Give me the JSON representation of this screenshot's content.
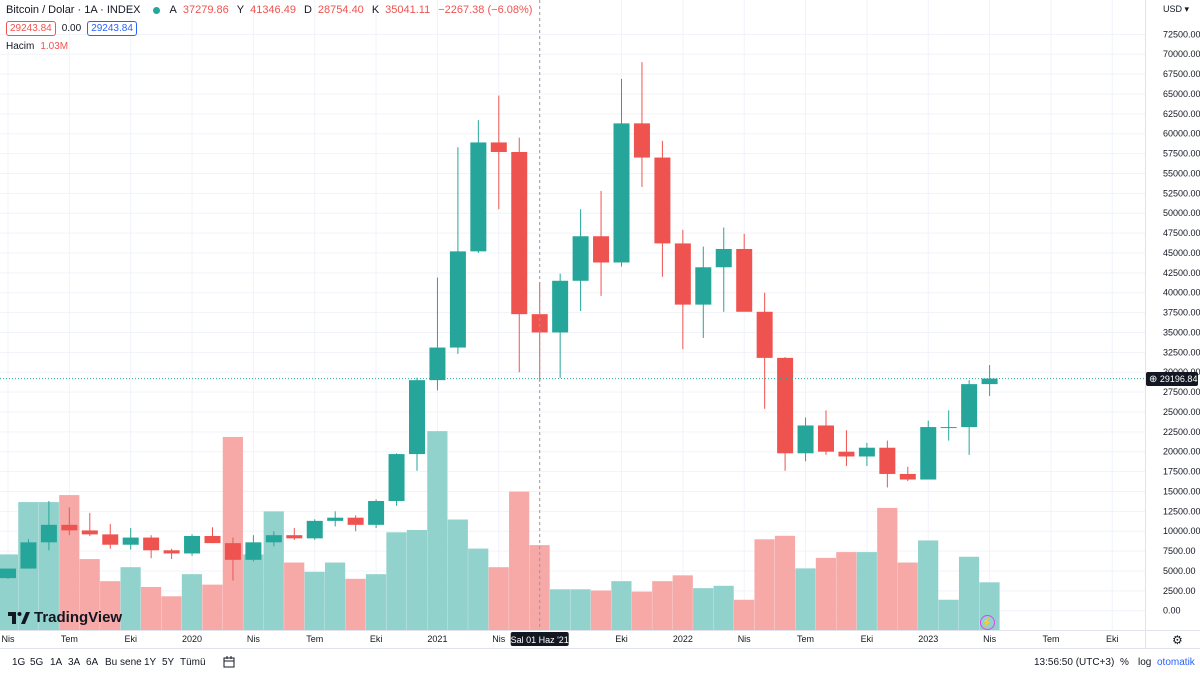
{
  "header": {
    "symbol": "Bitcoin / Dolar · 1A · INDEX",
    "open_label": "A",
    "open_value": "37279.86",
    "high_label": "Y",
    "high_value": "41346.49",
    "low_label": "D",
    "low_value": "28754.40",
    "close_label": "K",
    "close_value": "35041.11",
    "change": "−2267.38 (−6.08%)",
    "sell_price": "29243.84",
    "spread": "0.00",
    "buy_price": "29243.84",
    "volume_label": "Hacim",
    "volume_value": "1.03M"
  },
  "currency": "USD",
  "brand": "TradingView",
  "price_label": "29196.84",
  "crosshair_date": "Sal 01 Haz '21",
  "toolbar": {
    "ranges": [
      "1G",
      "5G",
      "1A",
      "3A",
      "6A",
      "Bu sene",
      "1Y",
      "5Y",
      "Tümü"
    ],
    "time": "13:56:50 (UTC+3)",
    "percent": "%",
    "log": "log",
    "auto": "otomatik"
  },
  "colors": {
    "up": "#26a69a",
    "down": "#ef5350",
    "up_vol": "#92d2cc",
    "down_vol": "#f7a9a7"
  },
  "chart_data": {
    "type": "candlestick",
    "title": "Bitcoin / Dolar · 1A · INDEX",
    "timeframe": "1 month",
    "ylim": [
      0,
      75000
    ],
    "y_ticks": [
      "72500.00",
      "70000.00",
      "67500.00",
      "65000.00",
      "62500.00",
      "60000.00",
      "57500.00",
      "55000.00",
      "52500.00",
      "50000.00",
      "47500.00",
      "45000.00",
      "42500.00",
      "40000.00",
      "37500.00",
      "35000.00",
      "32500.00",
      "30000.00",
      "27500.00",
      "25000.00",
      "22500.00",
      "20000.00",
      "17500.00",
      "15000.00",
      "12500.00",
      "10000.00",
      "7500.00",
      "5000.00",
      "2500.00",
      "0.00"
    ],
    "x_ticks": [
      {
        "label": "Nis",
        "index": 0
      },
      {
        "label": "Tem",
        "index": 3
      },
      {
        "label": "Eki",
        "index": 6
      },
      {
        "label": "2020",
        "index": 9
      },
      {
        "label": "Nis",
        "index": 12
      },
      {
        "label": "Tem",
        "index": 15
      },
      {
        "label": "Eki",
        "index": 18
      },
      {
        "label": "2021",
        "index": 21
      },
      {
        "label": "Nis",
        "index": 24
      },
      {
        "label": "Eki",
        "index": 30
      },
      {
        "label": "2022",
        "index": 33
      },
      {
        "label": "Nis",
        "index": 36
      },
      {
        "label": "Tem",
        "index": 39
      },
      {
        "label": "Eki",
        "index": 42
      },
      {
        "label": "2023",
        "index": 45
      },
      {
        "label": "Nis",
        "index": 48
      },
      {
        "label": "Tem",
        "index": 51
      },
      {
        "label": "Eki",
        "index": 54
      }
    ],
    "series": [
      {
        "o": 4100,
        "h": 5300,
        "l": 4000,
        "c": 5300,
        "v": 6500
      },
      {
        "o": 5300,
        "h": 9000,
        "l": 5300,
        "c": 8600,
        "v": 11000
      },
      {
        "o": 8600,
        "h": 13800,
        "l": 7600,
        "c": 10800,
        "v": 11000
      },
      {
        "o": 10800,
        "h": 13000,
        "l": 9500,
        "c": 10100,
        "v": 11600
      },
      {
        "o": 10100,
        "h": 12300,
        "l": 9400,
        "c": 9600,
        "v": 6100
      },
      {
        "o": 9600,
        "h": 10900,
        "l": 7800,
        "c": 8300,
        "v": 4200
      },
      {
        "o": 8300,
        "h": 10400,
        "l": 7700,
        "c": 9200,
        "v": 5400
      },
      {
        "o": 9200,
        "h": 9500,
        "l": 6600,
        "c": 7600,
        "v": 3700
      },
      {
        "o": 7600,
        "h": 7800,
        "l": 6500,
        "c": 7200,
        "v": 2900
      },
      {
        "o": 7200,
        "h": 9600,
        "l": 6900,
        "c": 9400,
        "v": 4800
      },
      {
        "o": 9400,
        "h": 10500,
        "l": 8500,
        "c": 8500,
        "v": 3900
      },
      {
        "o": 8500,
        "h": 9200,
        "l": 3800,
        "c": 6400,
        "v": 16600
      },
      {
        "o": 6400,
        "h": 9500,
        "l": 6200,
        "c": 8600,
        "v": 6500
      },
      {
        "o": 8600,
        "h": 10000,
        "l": 8100,
        "c": 9500,
        "v": 10200
      },
      {
        "o": 9500,
        "h": 10400,
        "l": 8900,
        "c": 9100,
        "v": 5800
      },
      {
        "o": 9100,
        "h": 11500,
        "l": 8900,
        "c": 11300,
        "v": 5000
      },
      {
        "o": 11300,
        "h": 12500,
        "l": 10600,
        "c": 11700,
        "v": 5800
      },
      {
        "o": 11700,
        "h": 12000,
        "l": 10000,
        "c": 10800,
        "v": 4400
      },
      {
        "o": 10800,
        "h": 14000,
        "l": 10400,
        "c": 13800,
        "v": 4800
      },
      {
        "o": 13800,
        "h": 19800,
        "l": 13200,
        "c": 19700,
        "v": 8400
      },
      {
        "o": 19700,
        "h": 29300,
        "l": 17600,
        "c": 29000,
        "v": 8600
      },
      {
        "o": 29000,
        "h": 41900,
        "l": 27700,
        "c": 33100,
        "v": 17100
      },
      {
        "o": 33100,
        "h": 58300,
        "l": 32300,
        "c": 45200,
        "v": 9500
      },
      {
        "o": 45200,
        "h": 61700,
        "l": 45000,
        "c": 58900,
        "v": 7000
      },
      {
        "o": 58900,
        "h": 64800,
        "l": 50500,
        "c": 57700,
        "v": 5400
      },
      {
        "o": 57700,
        "h": 59500,
        "l": 30000,
        "c": 37300,
        "v": 11900
      },
      {
        "o": 37300,
        "h": 41300,
        "l": 28800,
        "c": 35000,
        "v": 7300
      },
      {
        "o": 35000,
        "h": 42400,
        "l": 29300,
        "c": 41500,
        "v": 3500
      },
      {
        "o": 41500,
        "h": 50500,
        "l": 37700,
        "c": 47100,
        "v": 3500
      },
      {
        "o": 47100,
        "h": 52800,
        "l": 39600,
        "c": 43800,
        "v": 3400
      },
      {
        "o": 43800,
        "h": 66900,
        "l": 43300,
        "c": 61300,
        "v": 4200
      },
      {
        "o": 61300,
        "h": 69000,
        "l": 53300,
        "c": 57000,
        "v": 3300
      },
      {
        "o": 57000,
        "h": 59100,
        "l": 42000,
        "c": 46200,
        "v": 4200
      },
      {
        "o": 46200,
        "h": 47900,
        "l": 32900,
        "c": 38500,
        "v": 4700
      },
      {
        "o": 38500,
        "h": 45800,
        "l": 34300,
        "c": 43200,
        "v": 3600
      },
      {
        "o": 43200,
        "h": 48200,
        "l": 37600,
        "c": 45500,
        "v": 3800
      },
      {
        "o": 45500,
        "h": 47400,
        "l": 37700,
        "c": 37600,
        "v": 2600
      },
      {
        "o": 37600,
        "h": 40000,
        "l": 25400,
        "c": 31800,
        "v": 7800
      },
      {
        "o": 31800,
        "h": 31900,
        "l": 17600,
        "c": 19800,
        "v": 8100
      },
      {
        "o": 19800,
        "h": 24300,
        "l": 18800,
        "c": 23300,
        "v": 5300
      },
      {
        "o": 23300,
        "h": 25200,
        "l": 19600,
        "c": 20000,
        "v": 6200
      },
      {
        "o": 20000,
        "h": 22700,
        "l": 18200,
        "c": 19400,
        "v": 6700
      },
      {
        "o": 19400,
        "h": 21100,
        "l": 18200,
        "c": 20500,
        "v": 6700
      },
      {
        "o": 20500,
        "h": 21400,
        "l": 15500,
        "c": 17200,
        "v": 10500
      },
      {
        "o": 17200,
        "h": 18100,
        "l": 16300,
        "c": 16500,
        "v": 5800
      },
      {
        "o": 16500,
        "h": 23900,
        "l": 16500,
        "c": 23100,
        "v": 7700
      },
      {
        "o": 23100,
        "h": 25200,
        "l": 21400,
        "c": 23100,
        "v": 2600
      },
      {
        "o": 23100,
        "h": 29000,
        "l": 19600,
        "c": 28500,
        "v": 6300
      },
      {
        "o": 28500,
        "h": 30900,
        "l": 27000,
        "c": 29200,
        "v": 4100
      }
    ]
  }
}
